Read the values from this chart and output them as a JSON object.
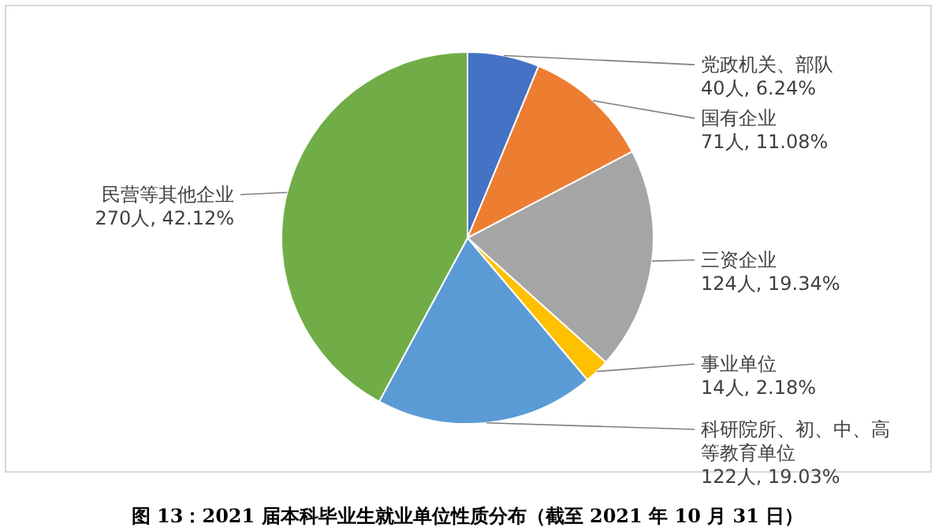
{
  "chart_data": {
    "type": "pie",
    "title": "图 13：2021 届本科毕业生就业单位性质分布（截至 2021 年 10 月 31 日）",
    "categories": [
      "党政机关、部队",
      "国有企业",
      "三资企业",
      "事业单位",
      "科研院所、初、中、高等教育单位",
      "民营等其他企业"
    ],
    "values": [
      40,
      71,
      124,
      14,
      122,
      270
    ],
    "colors": [
      "#4472c4",
      "#ed7d31",
      "#a5a5a5",
      "#ffc000",
      "#5b9bd5",
      "#70ad47"
    ],
    "value_labels": [
      "40人, 6.24%",
      "71人, 11.08%",
      "124人, 19.34%",
      "14人, 2.18%",
      "122人, 19.03%",
      "270人, 42.12%"
    ]
  }
}
